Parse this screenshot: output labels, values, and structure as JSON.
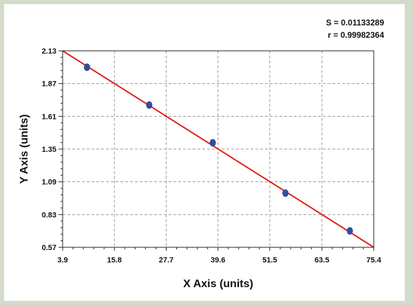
{
  "chart_data": {
    "type": "scatter",
    "title": "",
    "xlabel": "X Axis (units)",
    "ylabel": "Y Axis (units)",
    "xlim": [
      3.9,
      75.4
    ],
    "ylim": [
      0.57,
      2.13
    ],
    "x_ticks": [
      "3.9",
      "15.8",
      "27.7",
      "39.6",
      "51.5",
      "63.5",
      "75.4"
    ],
    "y_ticks": [
      "0.57",
      "0.83",
      "1.09",
      "1.35",
      "1.61",
      "1.87",
      "2.13"
    ],
    "grid": true,
    "points": [
      {
        "x": 9.5,
        "y": 2.0
      },
      {
        "x": 23.8,
        "y": 1.7
      },
      {
        "x": 38.4,
        "y": 1.4
      },
      {
        "x": 55.1,
        "y": 1.0
      },
      {
        "x": 69.9,
        "y": 0.7
      }
    ],
    "fit_line": {
      "x": [
        3.9,
        75.4
      ],
      "y": [
        2.13,
        0.57
      ]
    },
    "stats": {
      "s": "S = 0.01133289",
      "r": "r = 0.99982364"
    },
    "colors": {
      "point": "#2f4fa0",
      "line": "#e0201a",
      "grid": "#9a9a9a",
      "background": "#d3dcca"
    }
  }
}
